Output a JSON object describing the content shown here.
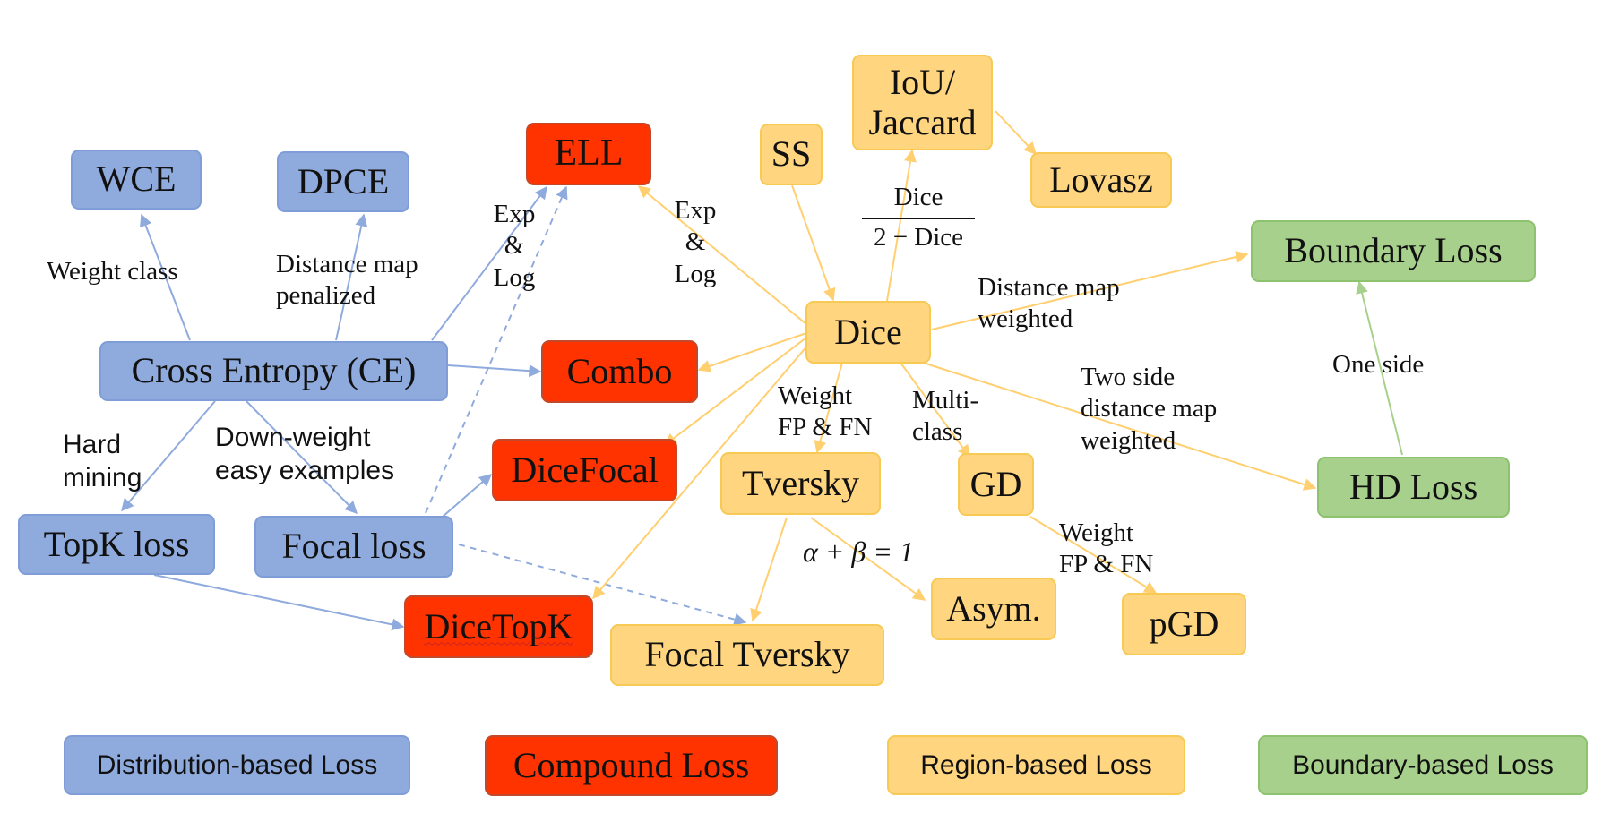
{
  "nodes": {
    "wce": "WCE",
    "dpce": "DPCE",
    "ell": "ELL",
    "ss": "SS",
    "iou": "IoU/\nJaccard",
    "lovasz": "Lovasz",
    "boundary_loss": "Boundary Loss",
    "cross_entropy": "Cross Entropy (CE)",
    "combo": "Combo",
    "dice": "Dice",
    "dicefocal": "DiceFocal",
    "topk": "TopK loss",
    "focal": "Focal loss",
    "dicetopk": "DiceTopK",
    "tversky": "Tversky",
    "gd": "GD",
    "hd_loss": "HD Loss",
    "asym": "Asym.",
    "pgd": "pGD",
    "focal_tversky": "Focal Tversky"
  },
  "edge_labels": {
    "weight_class": "Weight class",
    "distance_map_penalized": "Distance map\npenalized",
    "exp_log_left": "Exp\n&\nLog",
    "exp_log_right": "Exp\n&\nLog",
    "dice_frac_numerator": "Dice",
    "dice_frac_denominator": "2 − Dice",
    "distance_map_weighted": "Distance map\nweighted",
    "two_side": "Two side\ndistance map\nweighted",
    "one_side": "One side",
    "hard_mining": "Hard\nmining",
    "down_weight": "Down-weight\neasy examples",
    "weight_fp_fn_tversky": "Weight\nFP & FN",
    "multi_class": "Multi-\nclass",
    "alpha_beta": "α + β = 1",
    "weight_fp_fn_pgd": "Weight\nFP & FN"
  },
  "legend": {
    "distribution": "Distribution-based Loss",
    "compound": "Compound Loss",
    "region": "Region-based Loss",
    "boundary": "Boundary-based Loss"
  },
  "colors": {
    "distribution_fill": "#8FAADC",
    "compound_fill": "#FF3300",
    "region_fill": "#FFD580",
    "boundary_fill": "#A8D08D",
    "distribution_edge": "#8FAADC",
    "region_edge": "#FFD27A",
    "boundary_edge": "#A8D08D"
  }
}
